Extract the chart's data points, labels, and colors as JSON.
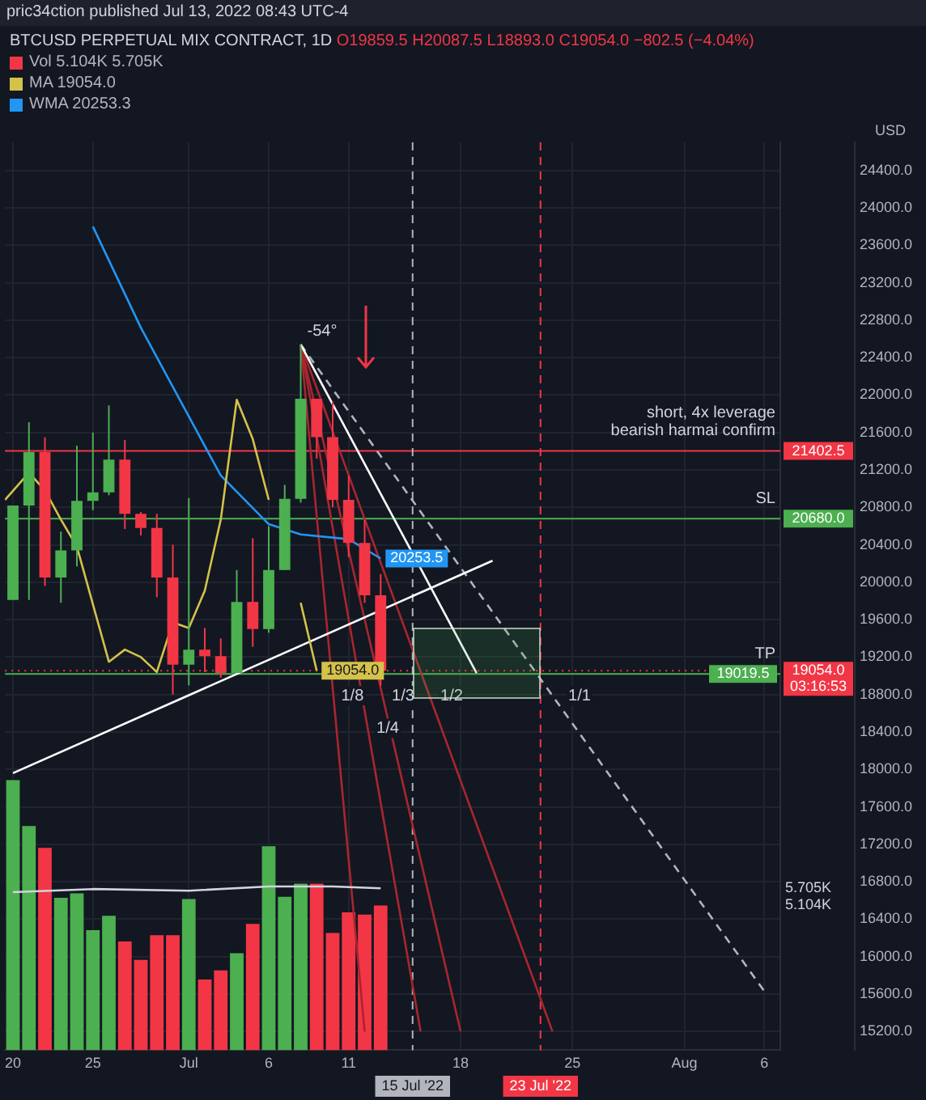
{
  "chart_data": {
    "type": "candlestick",
    "title": "BTCUSD PERPETUAL MIX CONTRACT, 1D",
    "subtitle": "O19859.5 H20087.5 L18893.0 C19054.0 −802.5 (−4.04%)",
    "ylabel": "USD",
    "x": [
      "2022-06-20",
      "2022-06-21",
      "2022-06-22",
      "2022-06-23",
      "2022-06-24",
      "2022-06-25",
      "2022-06-26",
      "2022-06-27",
      "2022-06-28",
      "2022-06-29",
      "2022-06-30",
      "2022-07-01",
      "2022-07-02",
      "2022-07-03",
      "2022-07-04",
      "2022-07-05",
      "2022-07-06",
      "2022-07-07",
      "2022-07-08",
      "2022-07-09",
      "2022-07-10",
      "2022-07-11",
      "2022-07-12",
      "2022-07-13"
    ],
    "ohlc": [
      [
        19810,
        20820,
        19810,
        20820
      ],
      [
        20820,
        21710,
        19810,
        21390
      ],
      [
        21390,
        21550,
        19960,
        20050
      ],
      [
        20050,
        20540,
        19780,
        20340
      ],
      [
        20340,
        21460,
        20170,
        20870
      ],
      [
        20870,
        21600,
        20770,
        20960
      ],
      [
        20960,
        21890,
        20930,
        21310
      ],
      [
        21310,
        21520,
        20570,
        20730
      ],
      [
        20730,
        20750,
        20500,
        20580
      ],
      [
        20580,
        20730,
        19840,
        20050
      ],
      [
        20050,
        20400,
        18800,
        19120
      ],
      [
        19120,
        20900,
        18900,
        19280
      ],
      [
        19280,
        19510,
        19040,
        19210
      ],
      [
        19210,
        19400,
        18980,
        19030
      ],
      [
        19030,
        20130,
        19030,
        19790
      ],
      [
        19790,
        20470,
        19310,
        19500
      ],
      [
        19500,
        20600,
        19460,
        20130
      ],
      [
        20130,
        21040,
        20130,
        20890
      ],
      [
        20890,
        22540,
        20850,
        21960
      ],
      [
        21960,
        21960,
        21320,
        21550
      ],
      [
        21550,
        21930,
        20800,
        20880
      ],
      [
        20880,
        21140,
        20270,
        20420
      ],
      [
        20420,
        20670,
        19780,
        19860
      ],
      [
        19859.5,
        20087.5,
        18893,
        19054
      ]
    ],
    "colors": [
      "#4caf50",
      "#4caf50",
      "#f23645",
      "#4caf50",
      "#4caf50",
      "#4caf50",
      "#4caf50",
      "#f23645",
      "#f23645",
      "#f23645",
      "#f23645",
      "#4caf50",
      "#f23645",
      "#f23645",
      "#4caf50",
      "#f23645",
      "#4caf50",
      "#4caf50",
      "#4caf50",
      "#f23645",
      "#f23645",
      "#f23645",
      "#f23645",
      "#f23645"
    ],
    "series": [
      {
        "name": "Vol 5.104K 5.705K",
        "type": "bar",
        "axis": "y2",
        "values": [
          9520,
          7900,
          7130,
          5370,
          5530,
          4230,
          4740,
          3830,
          3180,
          4050,
          4050,
          5330,
          2490,
          2810,
          3420,
          4450,
          7190,
          5410,
          5870,
          5870,
          4130,
          4860,
          4780,
          5104
        ],
        "colors": [
          "#4caf50",
          "#4caf50",
          "#f23645",
          "#4caf50",
          "#4caf50",
          "#4caf50",
          "#4caf50",
          "#f23645",
          "#f23645",
          "#f23645",
          "#f23645",
          "#4caf50",
          "#f23645",
          "#f23645",
          "#4caf50",
          "#f23645",
          "#4caf50",
          "#4caf50",
          "#4caf50",
          "#f23645",
          "#f23645",
          "#f23645",
          "#f23645",
          "#f23645"
        ]
      },
      {
        "type": "line",
        "axis": "y2",
        "color": "#d1d4dc",
        "x": [
          "2022-06-20",
          "2022-06-25",
          "2022-07-01",
          "2022-07-06",
          "2022-07-10",
          "2022-07-13"
        ],
        "values": [
          5570,
          5680,
          5620,
          5770,
          5770,
          5705
        ]
      },
      {
        "name": "MA 19054.0",
        "type": "line",
        "color": "#d4c24a",
        "x": [
          "2022-06-19T12:00",
          "2022-06-21",
          "2022-06-22",
          "2022-06-23",
          "2022-06-24",
          "2022-06-26",
          "2022-06-27",
          "2022-06-28",
          "2022-06-29",
          "2022-06-30",
          "2022-07-01",
          "2022-07-02",
          "2022-07-03",
          "2022-07-04",
          "2022-07-05",
          "2022-07-06",
          "2022-07-07",
          "2022-07-08",
          "2022-07-09"
        ],
        "values": [
          20880,
          21170,
          20980,
          20670,
          20380,
          19150,
          19280,
          19200,
          19040,
          19570,
          19510,
          19910,
          20670,
          21950,
          21530,
          20880,
          null,
          19780,
          19054
        ],
        "value_labels": [
          null,
          null,
          null,
          null,
          null,
          null,
          null,
          null,
          null,
          null,
          null,
          null,
          null,
          null,
          null,
          null,
          null,
          null,
          "19054.0"
        ]
      },
      {
        "name": "WMA 20253.3",
        "type": "line",
        "color": "#2196f3",
        "x": [
          "2022-06-25",
          "2022-06-28",
          "2022-07-03",
          "2022-07-06",
          "2022-07-08",
          "2022-07-11",
          "2022-07-13"
        ],
        "values": [
          23800,
          22720,
          21140,
          20620,
          20510,
          20460,
          20253.5
        ],
        "value_labels": [
          null,
          null,
          null,
          null,
          null,
          null,
          "20253.5"
        ]
      },
      {
        "type": "line",
        "color": "#ffffff",
        "x": [
          "2022-06-20",
          "2022-07-20"
        ],
        "values": [
          17960,
          20230
        ]
      },
      {
        "type": "line",
        "color": "#ffffff",
        "x": [
          "2022-07-08",
          "2022-07-19"
        ],
        "values": [
          22540,
          19030
        ]
      },
      {
        "type": "line",
        "color": "#b2b5be",
        "line_style": "dashed",
        "x": [
          "2022-07-08",
          "2022-08-06"
        ],
        "values": [
          22540,
          15630
        ]
      },
      {
        "type": "line",
        "color": "#a8262f",
        "x": [
          "2022-07-08",
          "2022-07-12"
        ],
        "values": [
          22540,
          15200
        ]
      },
      {
        "type": "line",
        "color": "#a8262f",
        "x": [
          "2022-07-08",
          "2022-07-15T12:00"
        ],
        "values": [
          22540,
          15200
        ]
      },
      {
        "type": "line",
        "color": "#a8262f",
        "x": [
          "2022-07-08",
          "2022-07-18"
        ],
        "values": [
          22540,
          15200
        ]
      },
      {
        "type": "line",
        "color": "#a8262f",
        "x": [
          "2022-07-08",
          "2022-07-23T18:00"
        ],
        "values": [
          22540,
          15200
        ]
      }
    ],
    "xlim": [
      "2022-06-19T12:00",
      "2022-08-07"
    ],
    "xticks": [
      {
        "value": "2022-06-20",
        "label": "20"
      },
      {
        "value": "2022-06-25",
        "label": "25"
      },
      {
        "value": "2022-07-01",
        "label": "Jul"
      },
      {
        "value": "2022-07-06",
        "label": "6"
      },
      {
        "value": "2022-07-11",
        "label": "11"
      },
      {
        "value": "2022-07-18",
        "label": "18"
      },
      {
        "value": "2022-07-25",
        "label": "25"
      },
      {
        "value": "2022-08-01",
        "label": "Aug"
      },
      {
        "value": "2022-08-06",
        "label": "6"
      }
    ],
    "ylim": [
      15000,
      24700
    ],
    "yticks": [
      {
        "value": 15200,
        "label": "15200.0"
      },
      {
        "value": 15600,
        "label": "15600.0"
      },
      {
        "value": 16000,
        "label": "16000.0"
      },
      {
        "value": 16400,
        "label": "16400.0"
      },
      {
        "value": 16800,
        "label": "16800.0"
      },
      {
        "value": 17200,
        "label": "17200.0"
      },
      {
        "value": 17600,
        "label": "17600.0"
      },
      {
        "value": 18000,
        "label": "18000.0"
      },
      {
        "value": 18400,
        "label": "18400.0"
      },
      {
        "value": 18800,
        "label": "18800.0"
      },
      {
        "value": 19200,
        "label": "19200.0"
      },
      {
        "value": 19600,
        "label": "19600.0"
      },
      {
        "value": 20000,
        "label": "20000.0"
      },
      {
        "value": 20400,
        "label": "20400.0"
      },
      {
        "value": 20800,
        "label": "20800.0"
      },
      {
        "value": 21200,
        "label": "21200.0"
      },
      {
        "value": 21600,
        "label": "21600.0"
      },
      {
        "value": 22000,
        "label": "22000.0"
      },
      {
        "value": 22400,
        "label": "22400.0"
      },
      {
        "value": 22800,
        "label": "22800.0"
      },
      {
        "value": 23200,
        "label": "23200.0"
      },
      {
        "value": 23600,
        "label": "23600.0"
      },
      {
        "value": 24000,
        "label": "24000.0"
      },
      {
        "value": 24400,
        "label": "24400.0"
      }
    ],
    "y2lim": [
      0,
      32000
    ],
    "y2ticks": [
      {
        "value": 5104,
        "label": "5.104K"
      },
      {
        "value": 5705,
        "label": "5.705K"
      }
    ],
    "ref_lines": [
      {
        "axis": "y",
        "value": 21402.5,
        "label": "21402.5",
        "color": "#f23645"
      },
      {
        "axis": "y",
        "value": 20680,
        "label": "20680.0",
        "color": "#4caf50"
      },
      {
        "axis": "y",
        "value": 19054,
        "label": "19054.0\n03:16:53",
        "color": "#f23645",
        "line_style": "dotted"
      },
      {
        "axis": "y",
        "value": 19019.5,
        "label": "19019.5",
        "color": "#4caf50"
      },
      {
        "axis": "x",
        "value": "2022-07-15",
        "label": "15 Jul '22",
        "color": "#b2b5be",
        "line_style": "dashed"
      },
      {
        "axis": "x",
        "value": "2022-07-23",
        "label": "23 Jul '22",
        "color": "#f23645",
        "line_style": "dashed"
      }
    ],
    "annotations": [
      "pric34ction published Jul 13, 2022 08:43 UTC-4",
      {
        "text": "-54°",
        "x": "2022-07-08",
        "y": 22540
      },
      {
        "text": "1/8",
        "x": "2022-07-10T03:00",
        "y": 18650
      },
      {
        "text": "1/4",
        "x": "2022-07-12T08:00",
        "y": 18300
      },
      {
        "text": "1/3",
        "x": "2022-07-13T07:00",
        "y": 18650
      },
      {
        "text": "1/2",
        "x": "2022-07-16T08:00",
        "y": 18650
      },
      {
        "text": "1/1",
        "x": "2022-07-24T08:00",
        "y": 18650
      },
      {
        "text": "SL",
        "x": "2022-08-07",
        "y": 20680
      },
      {
        "text": "TP",
        "x": "2022-08-07",
        "y": 19019.5
      },
      {
        "text": "short, 4x leverage\nbearish harmai confirm",
        "x": "2022-08-07",
        "y": 21402.5
      }
    ],
    "grid": true,
    "legend": "top left"
  }
}
